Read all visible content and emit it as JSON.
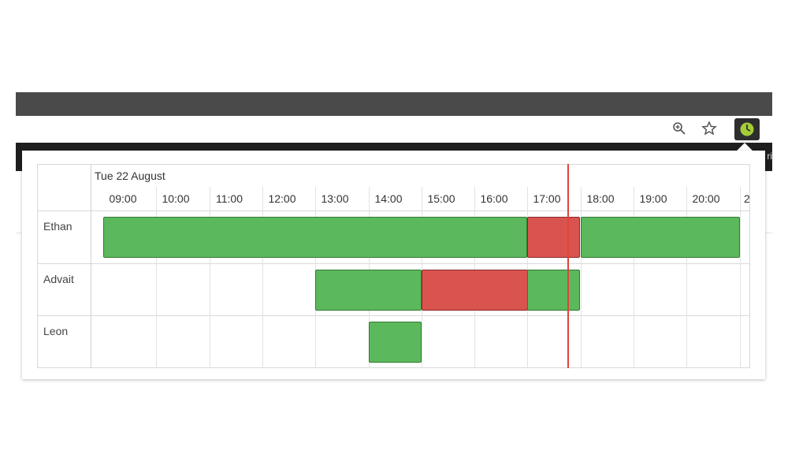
{
  "scheduler": {
    "date_label": "Tue 22 August",
    "hours": [
      "09:00",
      "10:00",
      "11:00",
      "12:00",
      "13:00",
      "14:00",
      "15:00",
      "16:00",
      "17:00",
      "18:00",
      "19:00",
      "20:00",
      "2"
    ],
    "resources": [
      {
        "name": "Ethan"
      },
      {
        "name": "Advait"
      },
      {
        "name": "Leon"
      }
    ],
    "bookings": [
      {
        "resource": "Ethan",
        "start": "09:00",
        "end": "17:00",
        "status": "free"
      },
      {
        "resource": "Ethan",
        "start": "17:00",
        "end": "18:00",
        "status": "busy"
      },
      {
        "resource": "Ethan",
        "start": "18:00",
        "end": "21:00",
        "status": "free"
      },
      {
        "resource": "Advait",
        "start": "13:00",
        "end": "15:00",
        "status": "free"
      },
      {
        "resource": "Advait",
        "start": "15:00",
        "end": "17:00",
        "status": "busy"
      },
      {
        "resource": "Advait",
        "start": "17:00",
        "end": "18:00",
        "status": "free"
      },
      {
        "resource": "Leon",
        "start": "14:00",
        "end": "15:00",
        "status": "free"
      }
    ],
    "now": "17:45",
    "colors": {
      "free": "#5cb85c",
      "busy": "#d9534f",
      "now_line": "#e0443a"
    }
  },
  "browser": {
    "icons": [
      "zoom-icon",
      "star-icon",
      "clock-extension-icon"
    ],
    "clipped_text": "ri"
  }
}
